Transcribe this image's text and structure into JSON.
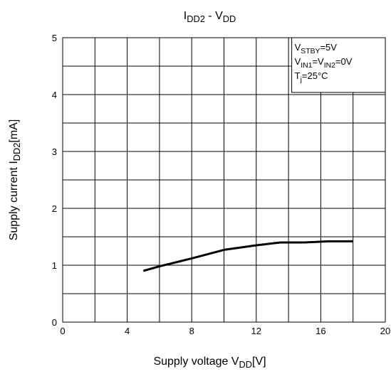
{
  "chart_data": {
    "type": "line",
    "title_parts": [
      "I",
      "DD2",
      " - V",
      "DD"
    ],
    "x_label_parts": [
      "Supply voltage V",
      "DD",
      "[V]"
    ],
    "y_label_parts": [
      "Supply current I",
      "DD2",
      "[mA]"
    ],
    "annotation_lines": [
      [
        "V",
        "STBY",
        "=5V"
      ],
      [
        "V",
        "IN1",
        "=V",
        "IN2",
        "=0V"
      ],
      [
        "T",
        "j",
        "=25°C"
      ]
    ],
    "x": [
      5,
      6,
      8,
      10,
      12,
      13.5,
      15,
      16.5,
      18
    ],
    "series": [
      {
        "color": "#000000",
        "values": [
          0.9,
          0.98,
          1.12,
          1.27,
          1.35,
          1.4,
          1.4,
          1.42,
          1.42
        ]
      }
    ],
    "xlim": [
      0,
      20
    ],
    "xticks": [
      0,
      4,
      8,
      12,
      16,
      20
    ],
    "x_minor_ticks": [
      2,
      6,
      10,
      14,
      18
    ],
    "ylim": [
      0,
      5
    ],
    "yticks": [
      0,
      1,
      2,
      3,
      4,
      5
    ],
    "y_minor_ticks": [
      0.5,
      1.5,
      2.5,
      3.5,
      4.5
    ],
    "grid": true
  }
}
